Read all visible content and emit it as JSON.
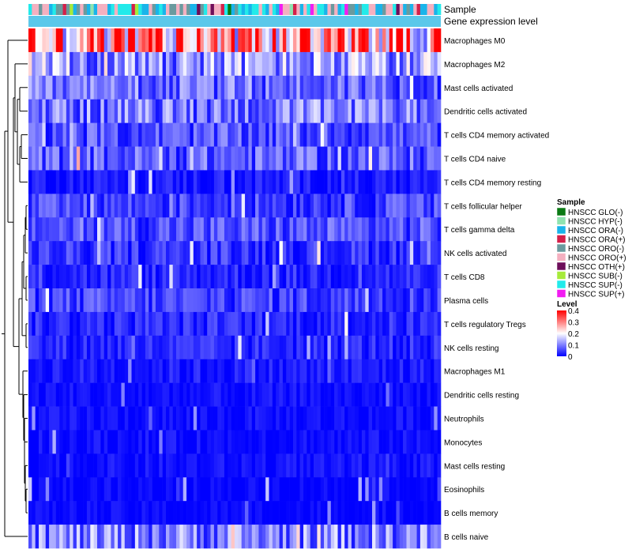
{
  "chart_data": {
    "type": "heatmap",
    "annotation_labels": [
      "Sample",
      "Gene expression level"
    ],
    "rows": [
      "Macrophages M0",
      "Macrophages M2",
      "Mast cells activated",
      "Dendritic cells activated",
      "T cells CD4 memory activated",
      "T cells CD4 naive",
      "T cells CD4 memory resting",
      "T cells follicular helper",
      "T cells gamma delta",
      "NK cells activated",
      "T cells CD8",
      "Plasma cells",
      "T cells regulatory  Tregs",
      "NK cells resting",
      "Macrophages M1",
      "Dendritic cells resting",
      "Neutrophils",
      "Monocytes",
      "Mast cells resting",
      "Eosinophils",
      "B cells memory",
      "B cells naive"
    ],
    "row_level_estimates": [
      0.28,
      0.12,
      0.08,
      0.09,
      0.06,
      0.07,
      0.02,
      0.05,
      0.06,
      0.04,
      0.03,
      0.05,
      0.03,
      0.03,
      0.02,
      0.01,
      0.01,
      0.01,
      0.01,
      0.005,
      0.005,
      0.1
    ],
    "n_samples": 120,
    "legend_sample": {
      "title": "Sample",
      "entries": [
        {
          "label": "HNSCC GLO(-)",
          "color": "#0a7a14"
        },
        {
          "label": "HNSCC HYP(-)",
          "color": "#8fe3b0"
        },
        {
          "label": "HNSCC ORA(-)",
          "color": "#19b4ea"
        },
        {
          "label": "HNSCC ORA(+)",
          "color": "#d4204a"
        },
        {
          "label": "HNSCC ORO(-)",
          "color": "#6a9a9e"
        },
        {
          "label": "HNSCC ORO(+)",
          "color": "#f4b0c0"
        },
        {
          "label": "HNSCC OTH(+)",
          "color": "#6e0e5a"
        },
        {
          "label": "HNSCC SUB(-)",
          "color": "#a6ea3a"
        },
        {
          "label": "HNSCC SUP(-)",
          "color": "#22eaea"
        },
        {
          "label": "HNSCC SUP(+)",
          "color": "#f21cf2"
        }
      ]
    },
    "legend_level": {
      "title": "Level",
      "range": [
        0,
        0.4
      ],
      "ticks": [
        "0.4",
        "0.3",
        "0.2",
        "0.1",
        "0"
      ],
      "colors": [
        "#0000ff",
        "#ffffff",
        "#ff0000"
      ]
    },
    "gene_expression_bar_color": "#5bc8ea"
  }
}
